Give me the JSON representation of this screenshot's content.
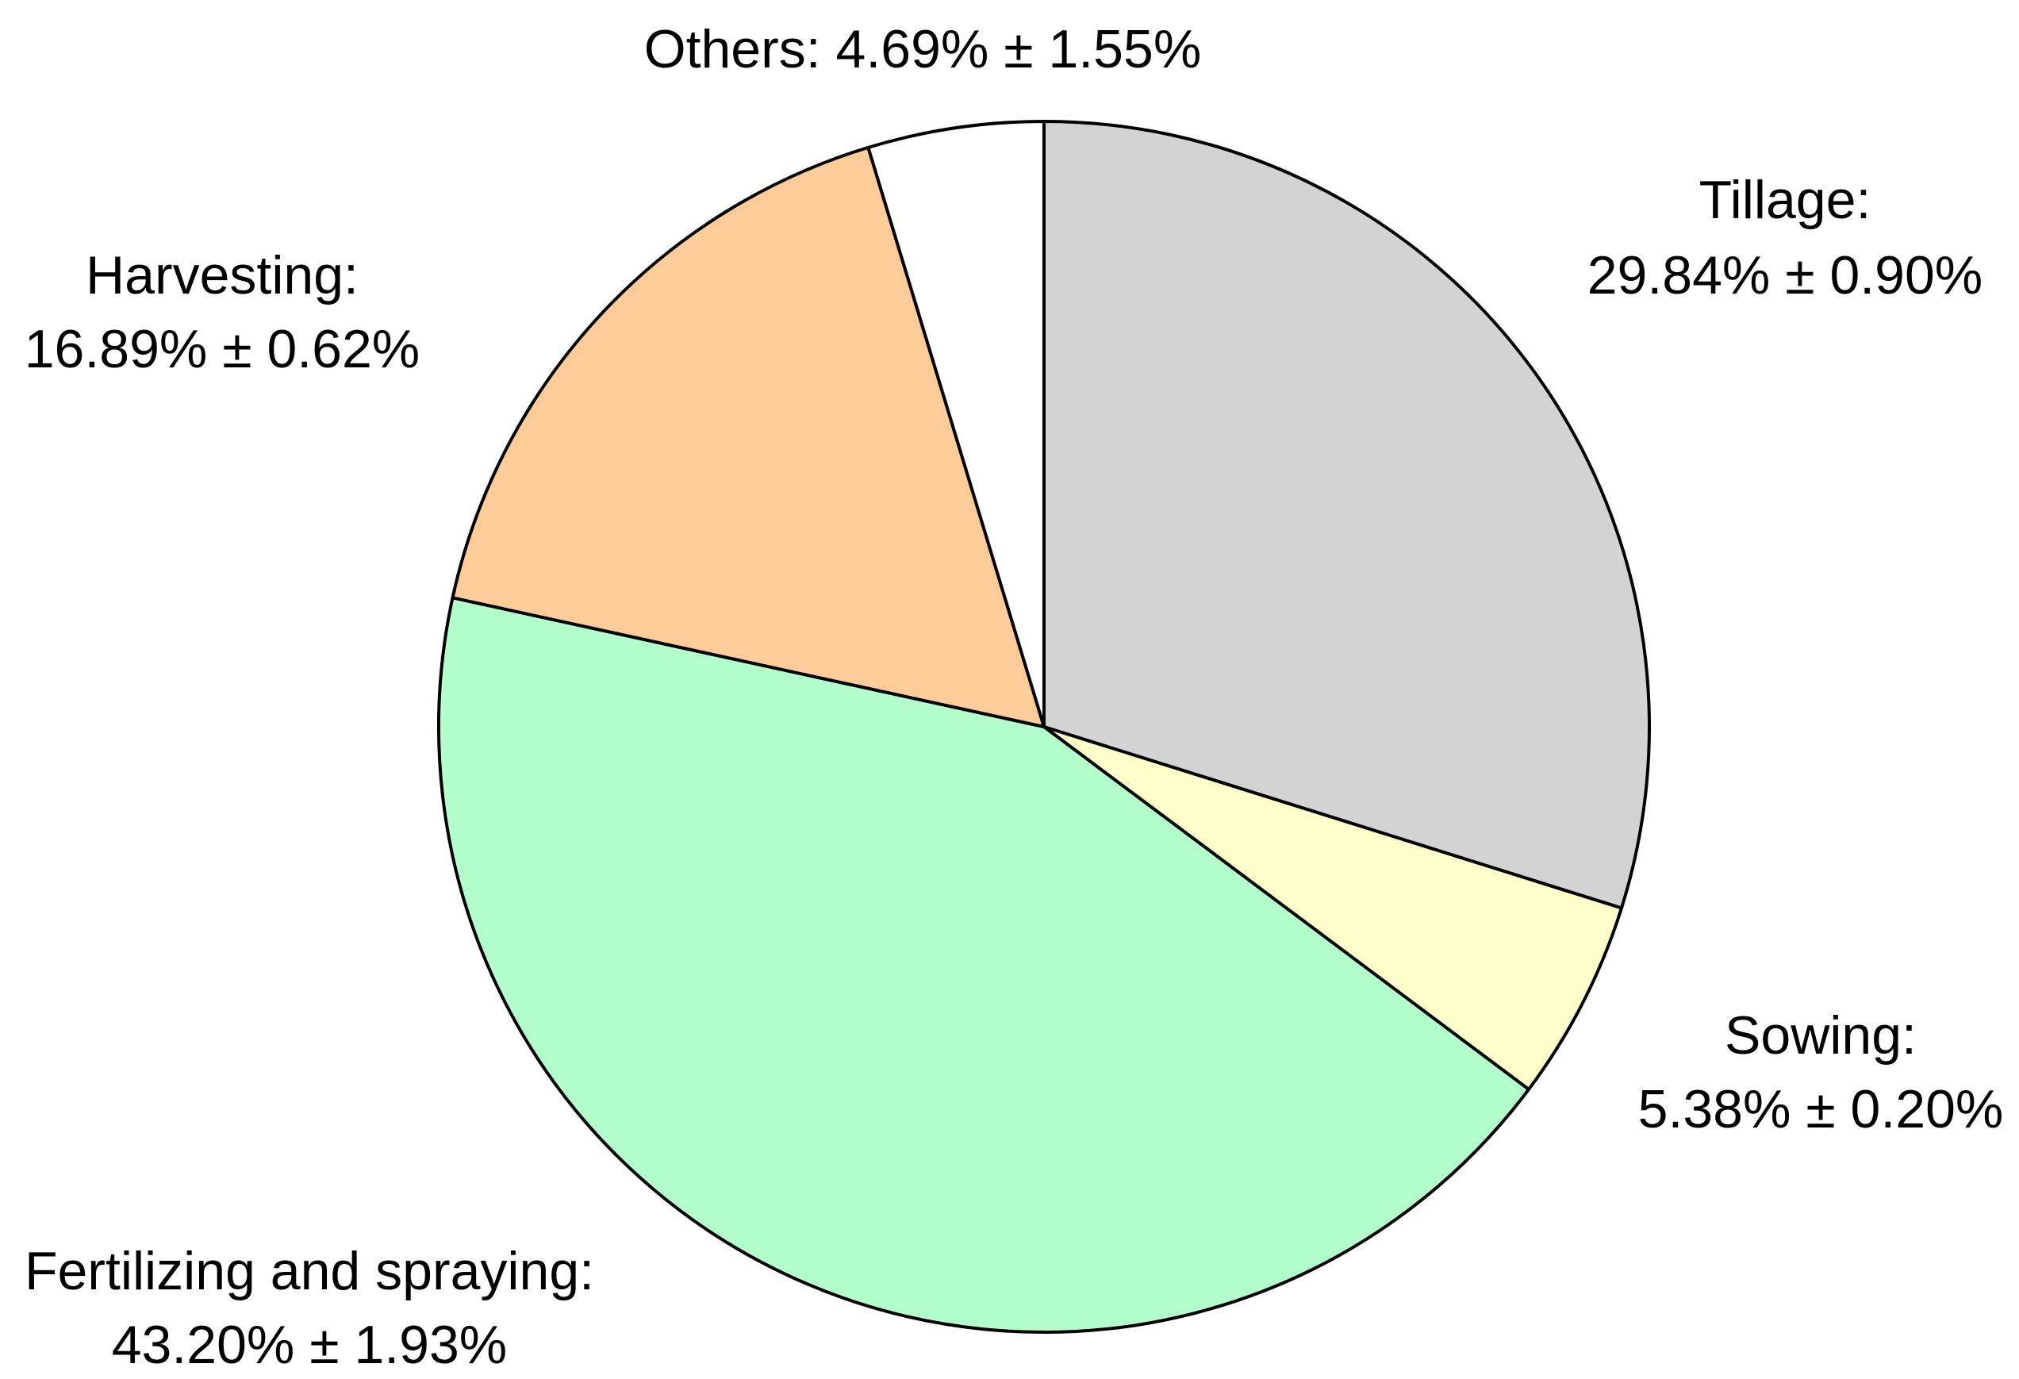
{
  "chart_data": {
    "type": "pie",
    "slices": [
      {
        "name": "Tillage",
        "value": 29.84,
        "error": 0.9,
        "color": "#d3d3d3",
        "label_line1": "Tillage:",
        "label_line2": "29.84% ± 0.90%"
      },
      {
        "name": "Sowing",
        "value": 5.38,
        "error": 0.2,
        "color": "#ffffcc",
        "label_line1": "Sowing:",
        "label_line2": "5.38% ± 0.20%"
      },
      {
        "name": "Fertilizing and spraying",
        "value": 43.2,
        "error": 1.93,
        "color": "#b3ffcc",
        "label_line1": "Fertilizing and spraying:",
        "label_line2": "43.20% ± 1.93%"
      },
      {
        "name": "Harvesting",
        "value": 16.89,
        "error": 0.62,
        "color": "#fdcc99",
        "label_line1": "Harvesting:",
        "label_line2": "16.89% ± 0.62%"
      },
      {
        "name": "Others",
        "value": 4.69,
        "error": 1.55,
        "color": "#ffffff",
        "label_line1": "Others: 4.69% ± 1.55%",
        "label_line2": ""
      }
    ],
    "start_angle": "12 o'clock",
    "direction": "clockwise",
    "legend": "none"
  }
}
